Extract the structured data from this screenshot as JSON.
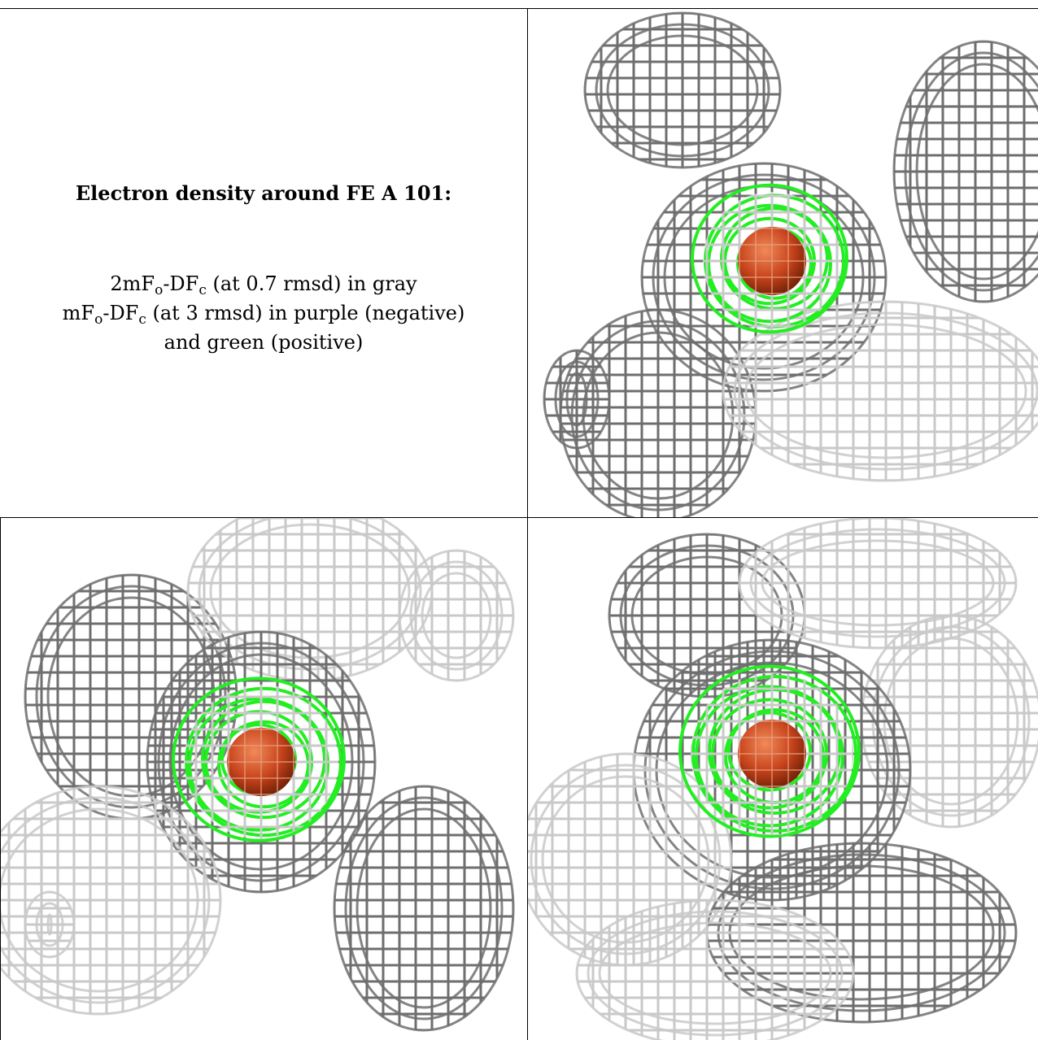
{
  "caption": {
    "title": "Electron density around FE A 101:",
    "map1_prefix": "2mF",
    "map1_sub1": "o",
    "map1_mid": "-DF",
    "map1_sub2": "c",
    "map1_suffix": " (at 0.7 rmsd) in gray",
    "map2_prefix": "mF",
    "map2_sub1": "o",
    "map2_mid": "-DF",
    "map2_sub2": "c",
    "map2_suffix": " (at 3 rmsd) in purple (negative)",
    "map2_line2": "and green (positive)"
  },
  "colors": {
    "mesh_dark": "#6e6e6e",
    "mesh_light": "#c9c9c9",
    "positive_map": "#22ee22",
    "iron_atom": "#c8441c"
  },
  "panels": [
    {
      "name": "view-top-right",
      "iron": [
        300,
        310
      ],
      "green_r": 95
    },
    {
      "name": "view-bottom-left",
      "iron": [
        320,
        300
      ],
      "green_r": 105
    },
    {
      "name": "view-bottom-right",
      "iron": [
        300,
        290
      ],
      "green_r": 110
    }
  ]
}
